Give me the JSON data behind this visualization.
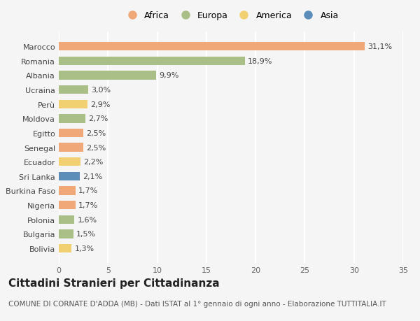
{
  "countries": [
    "Bolivia",
    "Bulgaria",
    "Polonia",
    "Nigeria",
    "Burkina Faso",
    "Sri Lanka",
    "Ecuador",
    "Senegal",
    "Egitto",
    "Moldova",
    "Perù",
    "Ucraina",
    "Albania",
    "Romania",
    "Marocco"
  ],
  "values": [
    1.3,
    1.5,
    1.6,
    1.7,
    1.7,
    2.1,
    2.2,
    2.5,
    2.5,
    2.7,
    2.9,
    3.0,
    9.9,
    18.9,
    31.1
  ],
  "labels": [
    "1,3%",
    "1,5%",
    "1,6%",
    "1,7%",
    "1,7%",
    "2,1%",
    "2,2%",
    "2,5%",
    "2,5%",
    "2,7%",
    "2,9%",
    "3,0%",
    "9,9%",
    "18,9%",
    "31,1%"
  ],
  "continents": [
    "America",
    "Europa",
    "Europa",
    "Africa",
    "Africa",
    "Asia",
    "America",
    "Africa",
    "Africa",
    "Europa",
    "America",
    "Europa",
    "Europa",
    "Europa",
    "Africa"
  ],
  "colors": {
    "Africa": "#F0A878",
    "Europa": "#AABF88",
    "America": "#F0D070",
    "Asia": "#5B8DB8"
  },
  "legend_order": [
    "Africa",
    "Europa",
    "America",
    "Asia"
  ],
  "legend_colors": {
    "Africa": "#F0A878",
    "Europa": "#AABF88",
    "America": "#F0D070",
    "Asia": "#5B8DB8"
  },
  "title": "Cittadini Stranieri per Cittadinanza",
  "subtitle": "COMUNE DI CORNATE D'ADDA (MB) - Dati ISTAT al 1° gennaio di ogni anno - Elaborazione TUTTITALIA.IT",
  "xlim": [
    0,
    35
  ],
  "xticks": [
    0,
    5,
    10,
    15,
    20,
    25,
    30,
    35
  ],
  "background_color": "#f5f5f5",
  "grid_color": "#ffffff",
  "title_fontsize": 11,
  "subtitle_fontsize": 7.5,
  "label_fontsize": 8,
  "tick_fontsize": 8
}
